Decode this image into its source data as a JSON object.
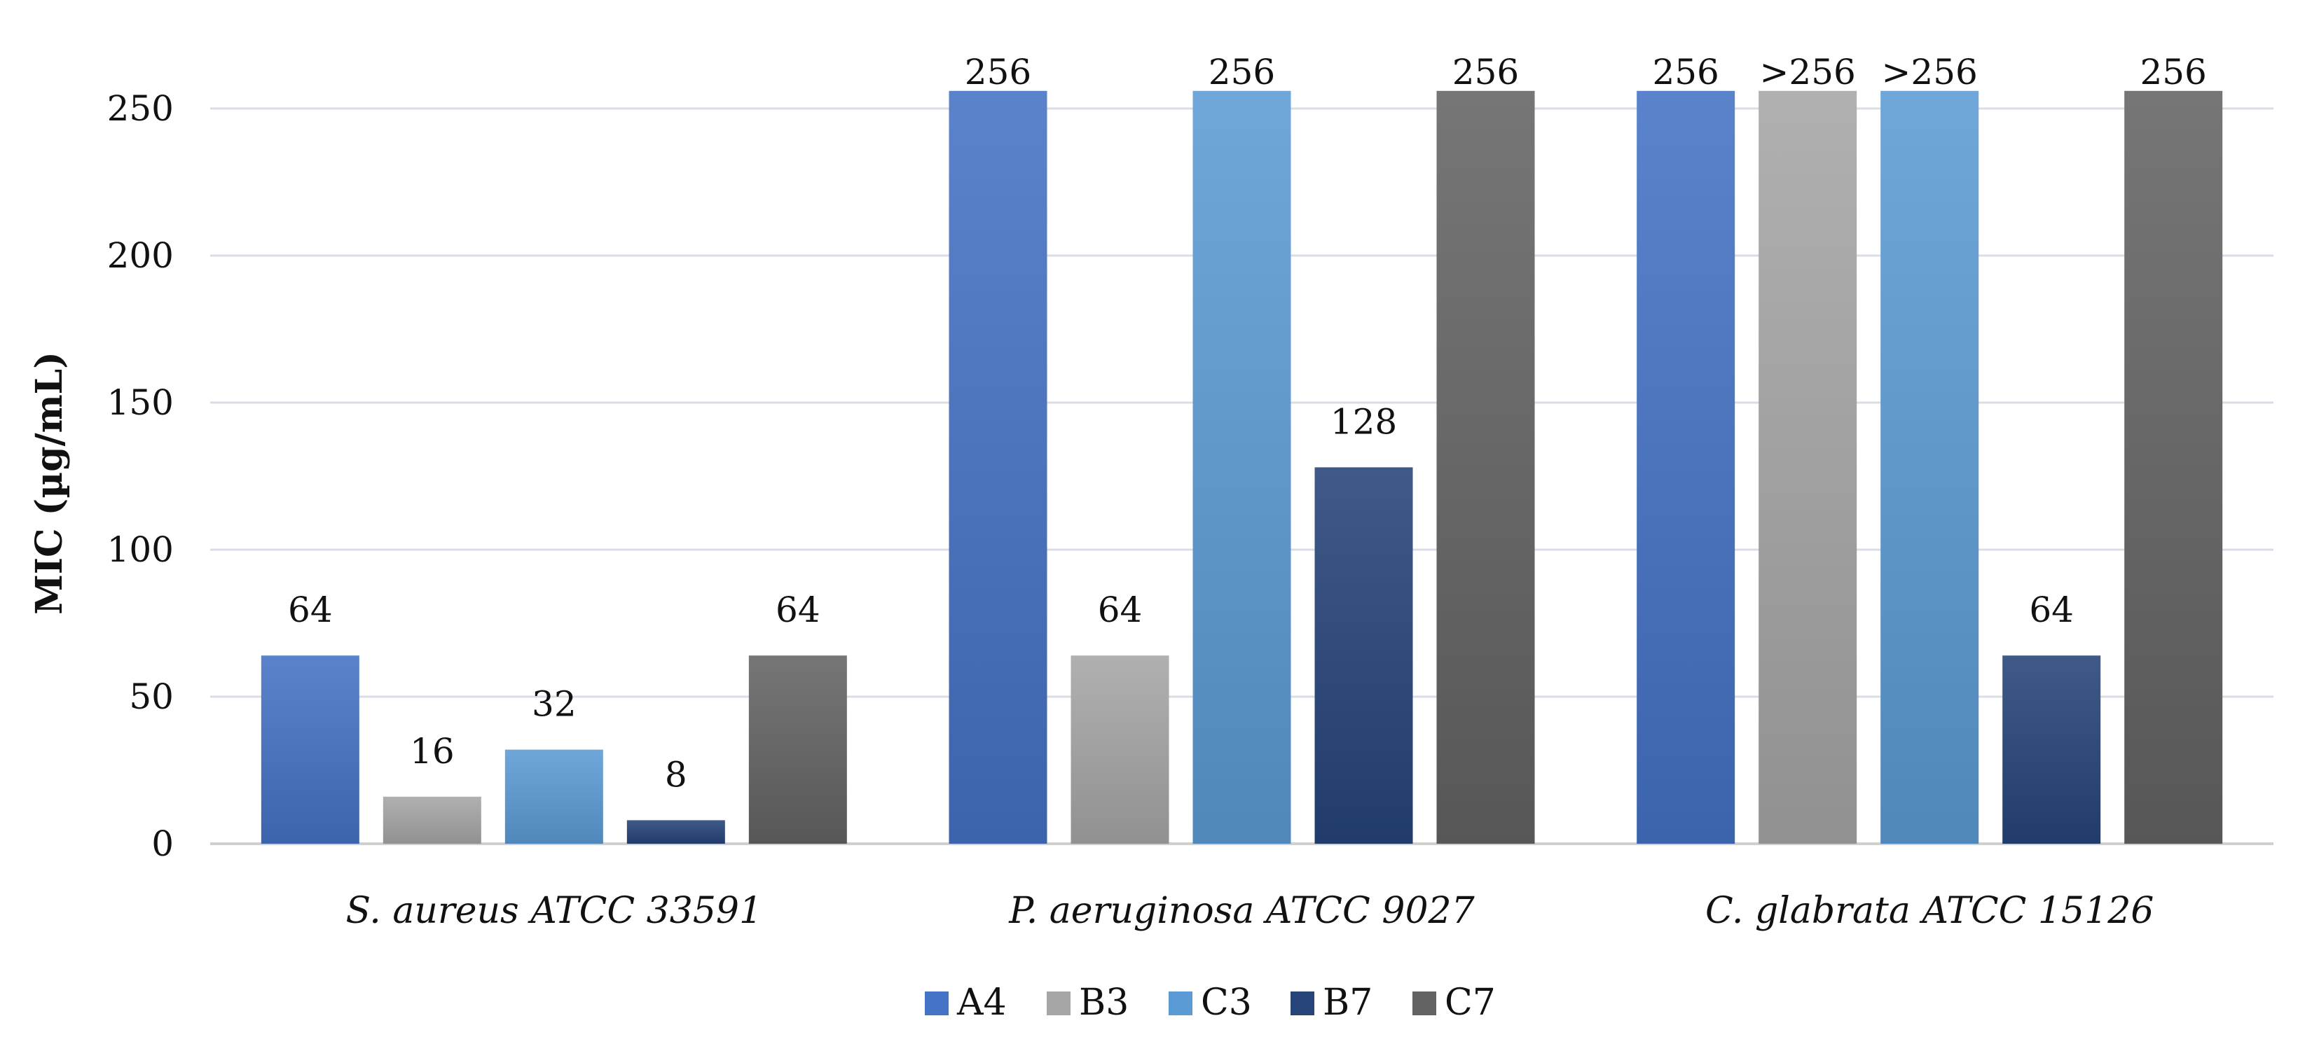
{
  "chart_data": {
    "type": "bar",
    "title": "",
    "xlabel": "",
    "ylabel": "MIC (µg/mL)",
    "ylim": [
      0,
      260
    ],
    "yticks": [
      0,
      50,
      100,
      150,
      200,
      250
    ],
    "grid": true,
    "legend_position": "bottom",
    "categories": [
      "S. aureus ATCC 33591",
      "P. aeruginosa ATCC 9027",
      "C. glabrata ATCC 15126"
    ],
    "series": [
      {
        "name": "A4",
        "color": "#4472C4",
        "values": [
          64,
          256,
          256
        ],
        "labels": [
          "64",
          "256",
          "256"
        ]
      },
      {
        "name": "B3",
        "color": "#A5A5A5",
        "values": [
          16,
          64,
          256
        ],
        "labels": [
          "16",
          "64",
          ">256"
        ]
      },
      {
        "name": "C3",
        "color": "#5B9BD5",
        "values": [
          32,
          256,
          256
        ],
        "labels": [
          "32",
          "256",
          ">256"
        ]
      },
      {
        "name": "B7",
        "color": "#264478",
        "values": [
          8,
          128,
          64
        ],
        "labels": [
          "8",
          "128",
          "64"
        ]
      },
      {
        "name": "C7",
        "color": "#636363",
        "values": [
          64,
          256,
          256
        ],
        "labels": [
          "64",
          "256",
          "256"
        ]
      }
    ]
  }
}
